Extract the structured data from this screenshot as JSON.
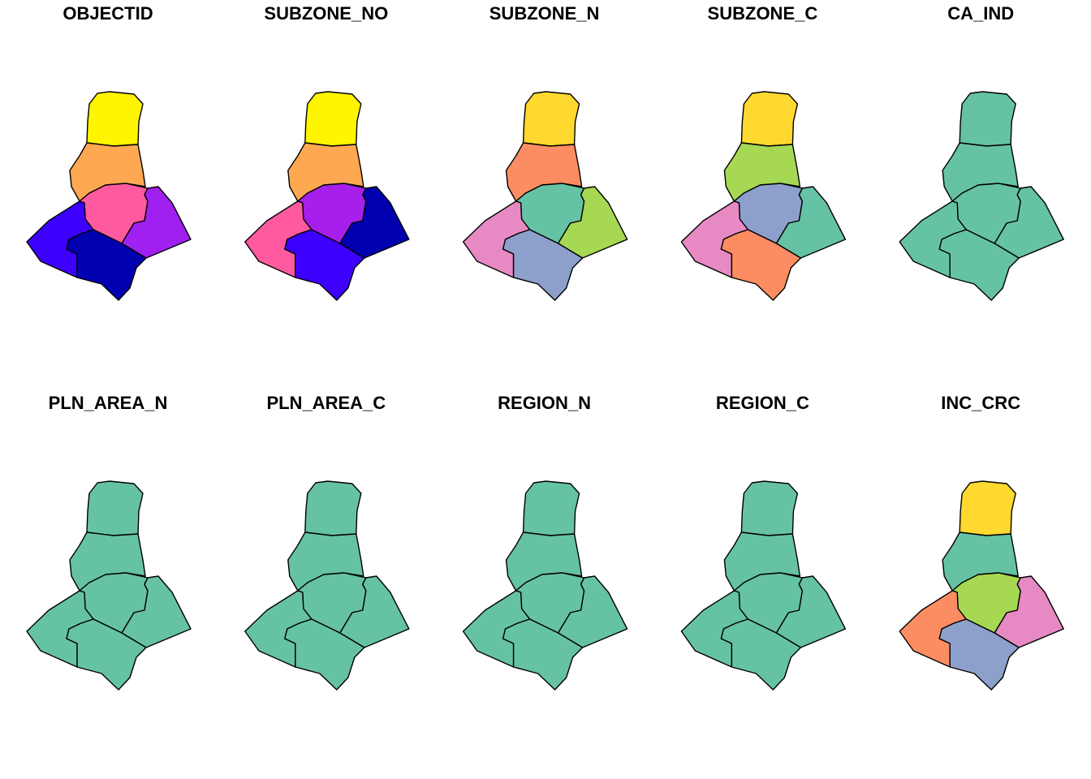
{
  "panels": [
    {
      "title": "OBJECTID",
      "colors": [
        "#fff500",
        "#ffa852",
        "#ff5aa0",
        "#a020f0",
        "#3d00ff",
        "#0000b0"
      ]
    },
    {
      "title": "SUBZONE_NO",
      "colors": [
        "#fff500",
        "#ffa852",
        "#a71feb",
        "#0000b0",
        "#ff5aa0",
        "#3d00ff"
      ]
    },
    {
      "title": "SUBZONE_N",
      "colors": [
        "#ffd92f",
        "#fc8d62",
        "#66c2a5",
        "#a6d854",
        "#e78ac3",
        "#8da0cb"
      ]
    },
    {
      "title": "SUBZONE_C",
      "colors": [
        "#ffd92f",
        "#a6d854",
        "#8da0cb",
        "#66c2a5",
        "#e78ac3",
        "#fc8d62"
      ]
    },
    {
      "title": "CA_IND",
      "colors": [
        "#66c2a5",
        "#66c2a5",
        "#66c2a5",
        "#66c2a5",
        "#66c2a5",
        "#66c2a5"
      ]
    },
    {
      "title": "PLN_AREA_N",
      "colors": [
        "#66c2a5",
        "#66c2a5",
        "#66c2a5",
        "#66c2a5",
        "#66c2a5",
        "#66c2a5"
      ]
    },
    {
      "title": "PLN_AREA_C",
      "colors": [
        "#66c2a5",
        "#66c2a5",
        "#66c2a5",
        "#66c2a5",
        "#66c2a5",
        "#66c2a5"
      ]
    },
    {
      "title": "REGION_N",
      "colors": [
        "#66c2a5",
        "#66c2a5",
        "#66c2a5",
        "#66c2a5",
        "#66c2a5",
        "#66c2a5"
      ]
    },
    {
      "title": "REGION_C",
      "colors": [
        "#66c2a5",
        "#66c2a5",
        "#66c2a5",
        "#66c2a5",
        "#66c2a5",
        "#66c2a5"
      ]
    },
    {
      "title": "INC_CRC",
      "colors": [
        "#ffd92f",
        "#66c2a5",
        "#a6d854",
        "#e78ac3",
        "#fc8d62",
        "#8da0cb"
      ]
    }
  ]
}
